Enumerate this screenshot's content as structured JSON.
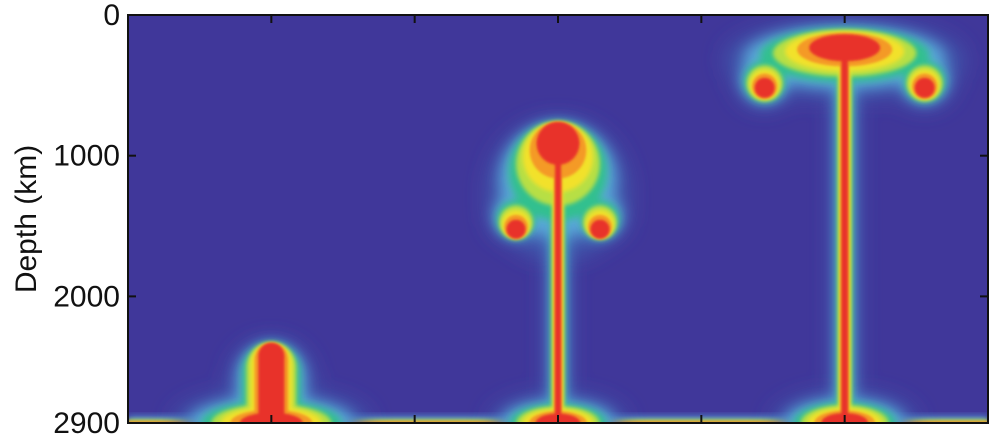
{
  "chart_data": {
    "type": "heatmap",
    "title": "",
    "ylabel": "Depth (km)",
    "xlabel": "",
    "ylim": [
      0,
      2900
    ],
    "y_inverted": true,
    "y_ticks": [
      "0",
      "1000",
      "2000",
      "2900"
    ],
    "x_tick_labels": [],
    "panels": 3,
    "colormap": [
      "#3d3795",
      "#3f5fb0",
      "#5aa8d8",
      "#33c08f",
      "#b7df45",
      "#f2e12a",
      "#f49a26",
      "#e8322a"
    ],
    "background_color": "#40379a",
    "plumes": [
      {
        "panel": 1,
        "stage": "early",
        "head_top_depth": 2330,
        "head_bottom_depth": 2700,
        "base_depth": 2900
      },
      {
        "panel": 2,
        "stage": "intermediate",
        "head_top_depth": 760,
        "head_bottom_depth": 1590,
        "base_depth": 2900
      },
      {
        "panel": 3,
        "stage": "late",
        "head_top_depth": 180,
        "head_bottom_depth": 560,
        "base_depth": 2900
      }
    ]
  }
}
